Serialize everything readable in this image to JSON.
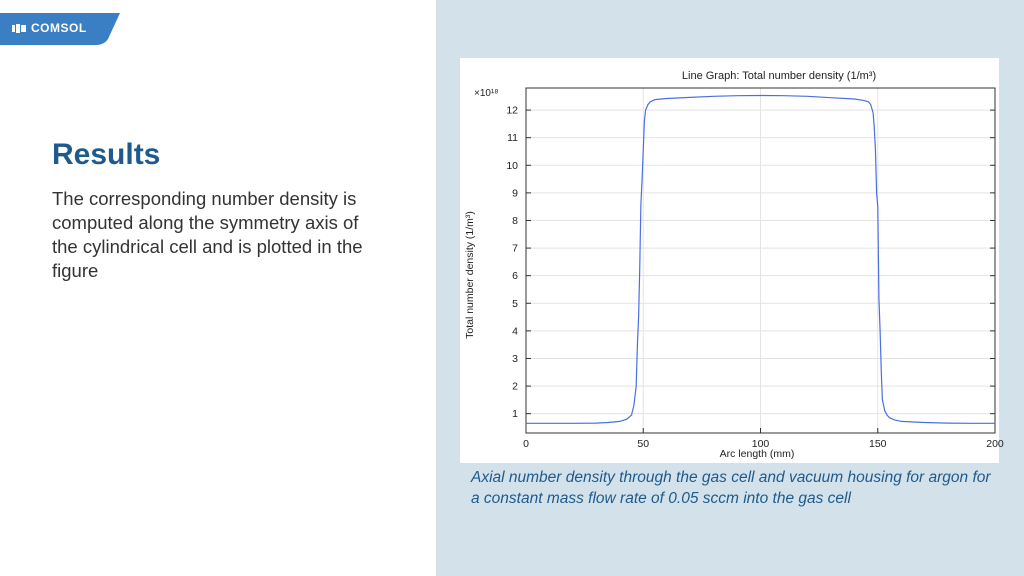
{
  "brand": {
    "logo_text": "COMSOL",
    "accent": "#3a7fc4"
  },
  "slide": {
    "title": "Results",
    "body": "The corresponding number density is computed along the symmetry axis of the cylindrical cell and is plotted in the figure",
    "caption": "Axial number density through the gas cell and vacuum housing for argon for a constant mass flow rate of 0.05 sccm into the gas cell"
  },
  "colors": {
    "title": "#1f5a8c",
    "right_panel": "#d2e1ea",
    "series": "#4a6fe3"
  },
  "chart_data": {
    "type": "line",
    "title": "Line Graph: Total number density (1/m³)",
    "xlabel": "Arc length (mm)",
    "ylabel": "Total number density (1/m³)",
    "exponent_label": "×10¹⁸",
    "xlim": [
      0,
      200
    ],
    "ylim": [
      0.3,
      12.8
    ],
    "xticks": [
      0,
      50,
      100,
      150,
      200
    ],
    "yticks": [
      1,
      2,
      3,
      4,
      5,
      6,
      7,
      8,
      9,
      10,
      11,
      12
    ],
    "grid": true,
    "series": [
      {
        "x": [
          0,
          10,
          20,
          30,
          35,
          40,
          43,
          45,
          46,
          47,
          47.5,
          48,
          48.5,
          49,
          49.5,
          50,
          50.5,
          51,
          52,
          53,
          55,
          60,
          70,
          80,
          90,
          100,
          110,
          120,
          130,
          140,
          144,
          146,
          147,
          148,
          148.5,
          149,
          149.5,
          150,
          150.5,
          151,
          151.5,
          152,
          153,
          154,
          155,
          157,
          160,
          170,
          180,
          190,
          200
        ],
        "y": [
          0.65,
          0.65,
          0.65,
          0.66,
          0.68,
          0.72,
          0.8,
          0.95,
          1.3,
          2.0,
          3.5,
          4.5,
          6.2,
          8.6,
          9.5,
          10.6,
          11.6,
          12.0,
          12.2,
          12.3,
          12.38,
          12.42,
          12.46,
          12.5,
          12.52,
          12.53,
          12.52,
          12.5,
          12.45,
          12.4,
          12.35,
          12.3,
          12.2,
          11.9,
          11.4,
          10.6,
          9.0,
          8.5,
          5.2,
          4.0,
          2.5,
          1.5,
          1.1,
          0.95,
          0.85,
          0.78,
          0.72,
          0.68,
          0.66,
          0.65,
          0.65
        ]
      }
    ]
  }
}
